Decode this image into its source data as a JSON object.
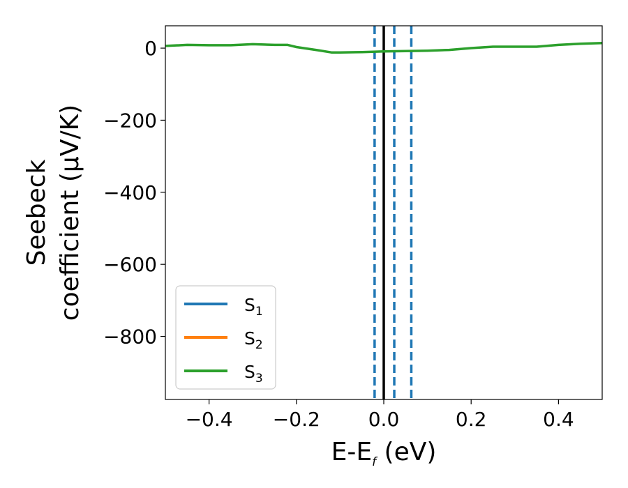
{
  "chart_data": {
    "type": "line",
    "xlabel": "E-E",
    "xlabel_sub": "f",
    "xlabel_unit": " (eV)",
    "ylabel_line1": "Seebeck",
    "ylabel_line2": "coefficient  (μV/K)",
    "xlim": [
      -0.5,
      0.5
    ],
    "ylim": [
      -975,
      62
    ],
    "x_ticks": [
      -0.4,
      -0.2,
      0.0,
      0.2,
      0.4
    ],
    "x_tick_labels": [
      "−0.4",
      "−0.2",
      "0.0",
      "0.2",
      "0.4"
    ],
    "y_ticks": [
      0,
      -200,
      -400,
      -600,
      -800
    ],
    "y_tick_labels": [
      "0",
      "−200",
      "−400",
      "−600",
      "−800"
    ],
    "grid": false,
    "legend_position": "lower-left",
    "series": [
      {
        "name": "S",
        "sub": "1",
        "color": "#1f77b4",
        "x": [],
        "y": []
      },
      {
        "name": "S",
        "sub": "2",
        "color": "#ff7f0e",
        "x": [],
        "y": []
      },
      {
        "name": "S",
        "sub": "3",
        "color": "#2ca02c",
        "x": [
          -0.5,
          -0.45,
          -0.4,
          -0.35,
          -0.3,
          -0.25,
          -0.22,
          -0.2,
          -0.15,
          -0.12,
          -0.1,
          -0.05,
          0.0,
          0.05,
          0.1,
          0.15,
          0.2,
          0.25,
          0.3,
          0.35,
          0.4,
          0.45,
          0.5
        ],
        "y": [
          6,
          9,
          8,
          8,
          11,
          9,
          9,
          3,
          -6,
          -12,
          -12,
          -11,
          -9,
          -8,
          -7,
          -5,
          0,
          4,
          4,
          4,
          9,
          12,
          14
        ]
      }
    ],
    "vlines": [
      {
        "x": 0.0,
        "color": "#000000",
        "style": "solid"
      },
      {
        "x": -0.021,
        "color": "#1f77b4",
        "style": "dashed"
      },
      {
        "x": 0.024,
        "color": "#1f77b4",
        "style": "dashed"
      },
      {
        "x": 0.063,
        "color": "#1f77b4",
        "style": "dashed"
      }
    ]
  }
}
